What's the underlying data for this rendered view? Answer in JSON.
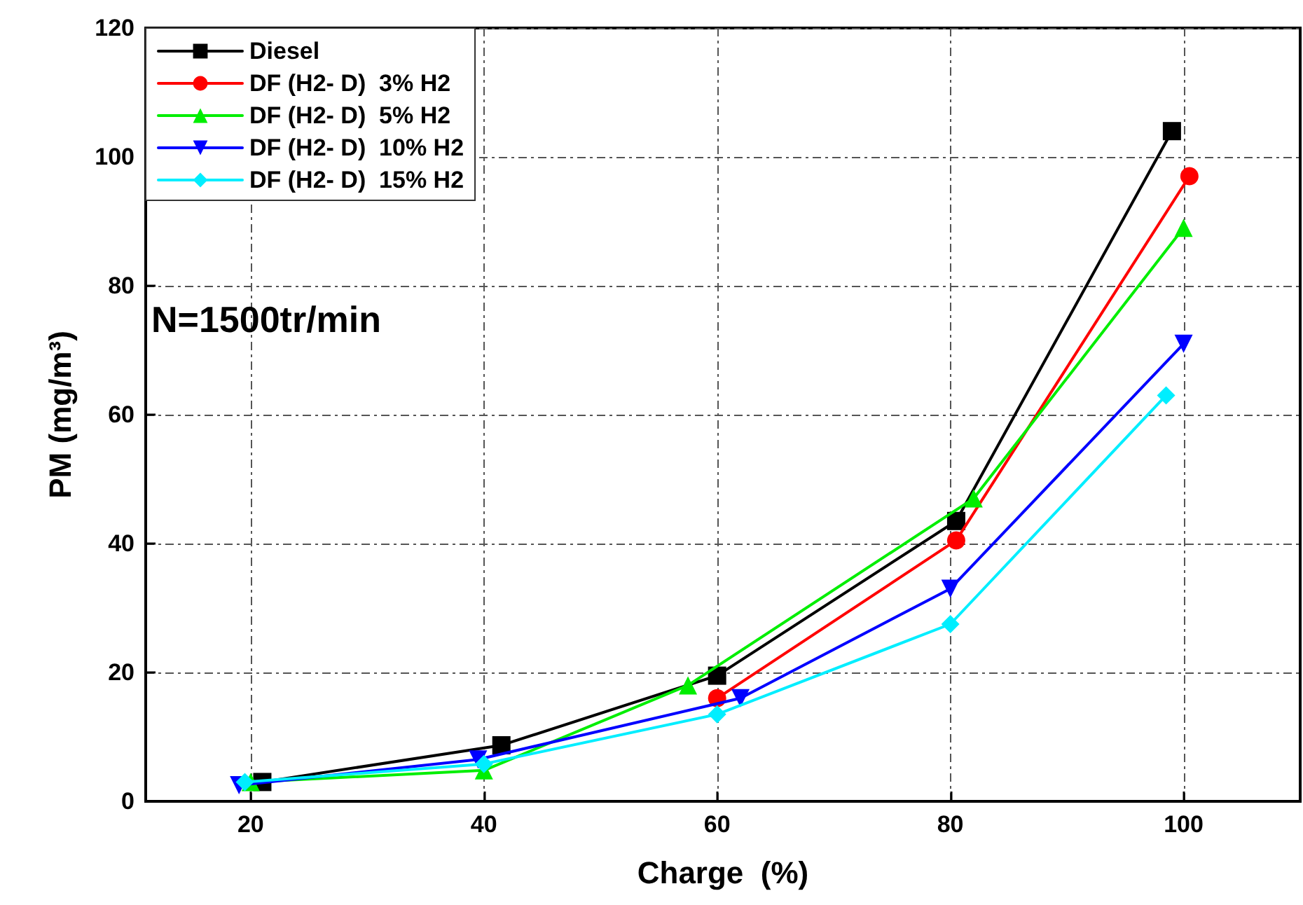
{
  "chart_data": {
    "type": "line",
    "xlabel": "Charge  (%)",
    "ylabel": "PM (mg/m³)",
    "annotations": [
      "N=1500tr/min"
    ],
    "xlim": [
      11,
      110
    ],
    "xticks": [
      20,
      40,
      60,
      80,
      100
    ],
    "ylim": [
      0,
      120
    ],
    "yticks": [
      0,
      20,
      40,
      60,
      80,
      100,
      120
    ],
    "grid": true,
    "legend": "top left",
    "line_style": "solid",
    "series": [
      {
        "name": "Diesel",
        "color": "#000000",
        "marker": "square",
        "x": [
          21,
          41.5,
          60,
          80.5,
          99
        ],
        "values": [
          3,
          8.7,
          19.5,
          43.5,
          104
        ]
      },
      {
        "name": "DF (H2- D)  3% H2",
        "color": "#ff0000",
        "marker": "circle",
        "x": [
          60,
          80.5,
          100.5
        ],
        "values": [
          16,
          40.5,
          97
        ]
      },
      {
        "name": "DF (H2- D)  5% H2",
        "color": "#00ee00",
        "marker": "triangle",
        "x": [
          20,
          40,
          57.5,
          82,
          100
        ],
        "values": [
          3,
          4.8,
          18,
          47,
          89
        ]
      },
      {
        "name": "DF (H2- D)  10% H2",
        "color": "#0000ff",
        "marker": "triangle-down",
        "x": [
          19,
          39.5,
          62,
          80,
          100
        ],
        "values": [
          2.5,
          6.5,
          16,
          33,
          71
        ]
      },
      {
        "name": "DF (H2- D)  15% H2",
        "color": "#00eeff",
        "marker": "diamond",
        "x": [
          19.5,
          40,
          60,
          80,
          98.5
        ],
        "values": [
          3,
          5.8,
          13.5,
          27.5,
          63
        ]
      }
    ]
  }
}
